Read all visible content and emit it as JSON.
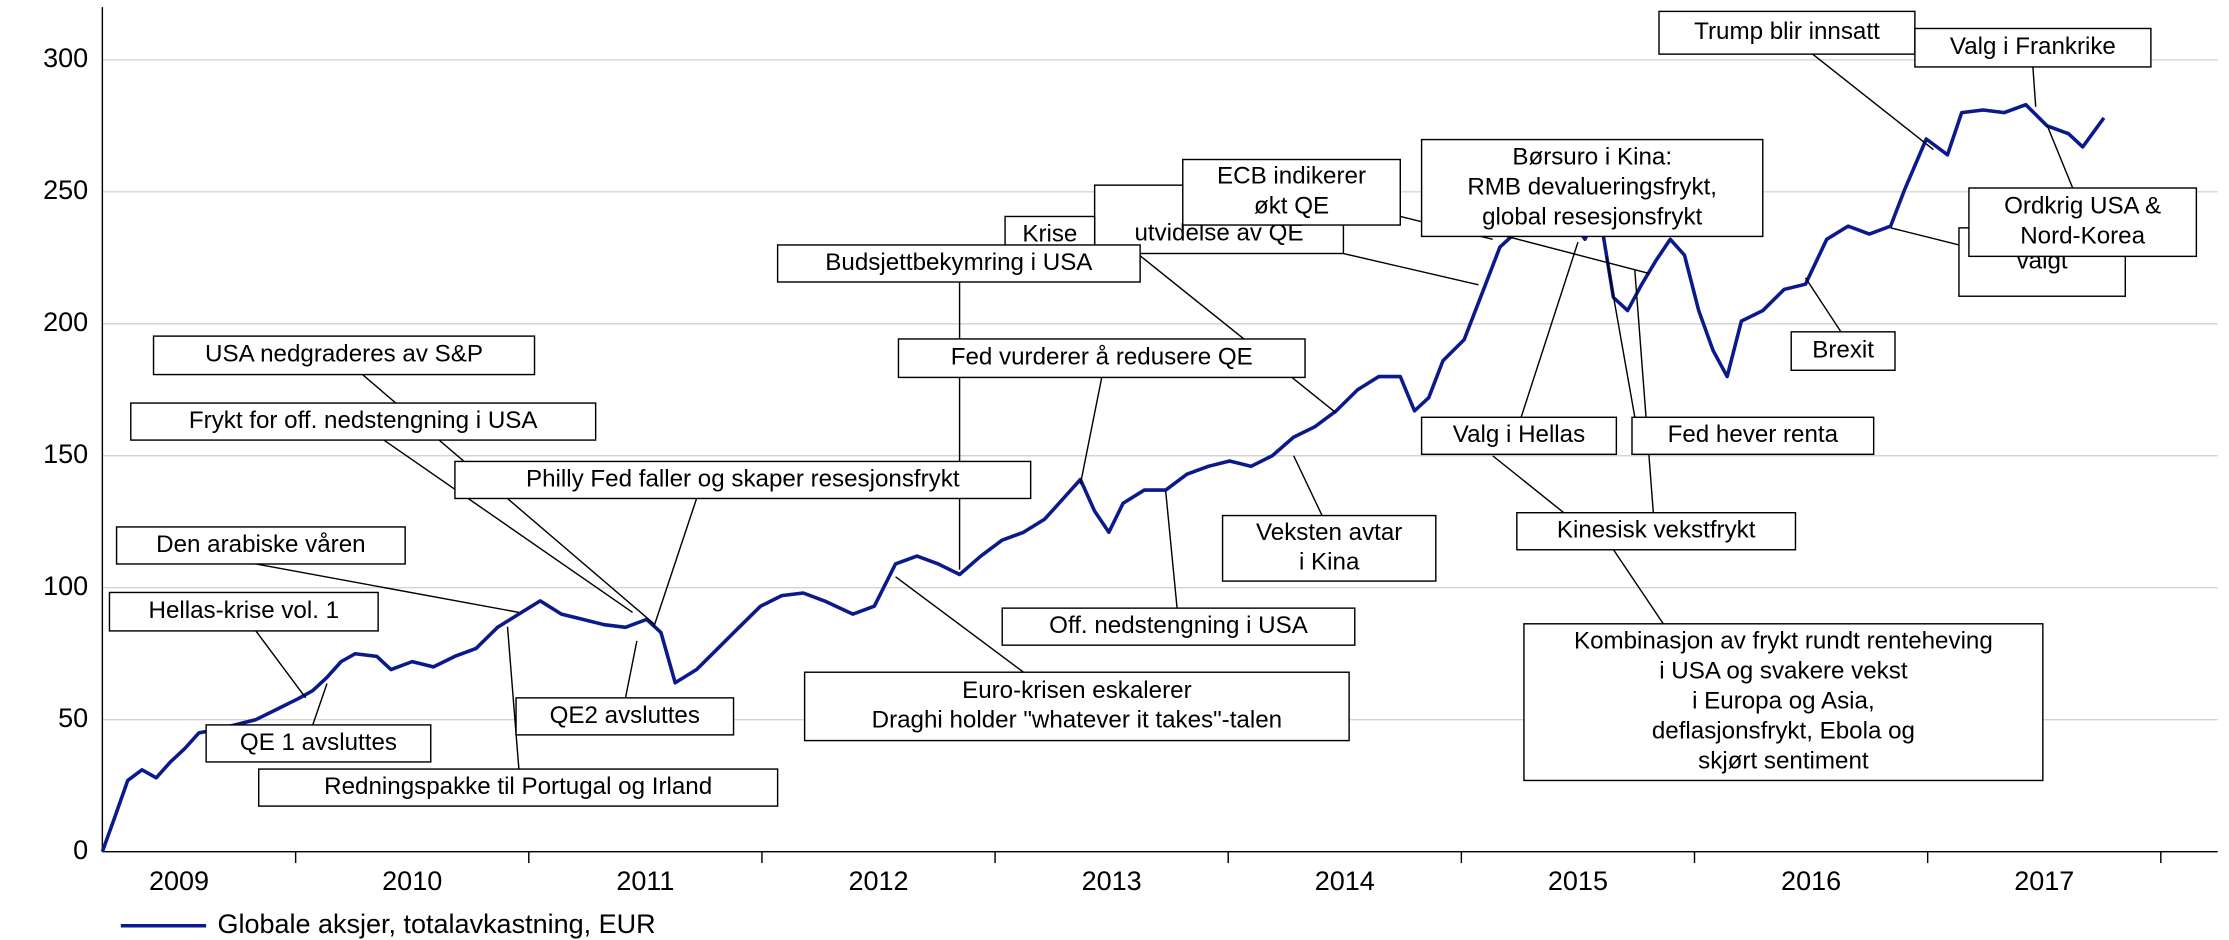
{
  "chart_data": {
    "type": "line",
    "x": [
      2009.171,
      2009.22,
      2009.28,
      2009.341,
      2009.402,
      2009.463,
      2009.524,
      2009.585,
      2009.646,
      2009.738,
      2009.829,
      2009.921,
      2010.012,
      2010.073,
      2010.134,
      2010.195,
      2010.256,
      2010.348,
      2010.409,
      2010.5,
      2010.591,
      2010.683,
      2010.774,
      2010.866,
      2010.957,
      2011.049,
      2011.14,
      2011.232,
      2011.323,
      2011.415,
      2011.506,
      2011.567,
      2011.628,
      2011.72,
      2011.811,
      2011.902,
      2011.994,
      2012.085,
      2012.177,
      2012.268,
      2012.39,
      2012.482,
      2012.573,
      2012.665,
      2012.756,
      2012.848,
      2012.939,
      2013.03,
      2013.122,
      2013.213,
      2013.305,
      2013.366,
      2013.427,
      2013.488,
      2013.549,
      2013.64,
      2013.732,
      2013.823,
      2013.915,
      2014.006,
      2014.098,
      2014.189,
      2014.28,
      2014.372,
      2014.463,
      2014.555,
      2014.646,
      2014.738,
      2014.799,
      2014.86,
      2014.921,
      2015.012,
      2015.104,
      2015.165,
      2015.226,
      2015.317,
      2015.409,
      2015.47,
      2015.53,
      2015.591,
      2015.652,
      2015.713,
      2015.774,
      2015.835,
      2015.896,
      2015.957,
      2016.018,
      2016.079,
      2016.14,
      2016.201,
      2016.293,
      2016.384,
      2016.476,
      2016.567,
      2016.659,
      2016.75,
      2016.841,
      2016.902,
      2016.994,
      2017.085,
      2017.146,
      2017.238,
      2017.329,
      2017.421,
      2017.512,
      2017.604,
      2017.665,
      2017.756
    ],
    "series": [
      {
        "name": "Globale aksjer, totalavkastning, EUR",
        "color": "#0a1a8c",
        "values": [
          0,
          12,
          27,
          31,
          28,
          34,
          39,
          45,
          46,
          48,
          50,
          54,
          58,
          61,
          66,
          72,
          75,
          74,
          69,
          72,
          70,
          74,
          77,
          85,
          90,
          95,
          90,
          88,
          86,
          85,
          88,
          83,
          64,
          69,
          77,
          85,
          93,
          97,
          98,
          95,
          90,
          93,
          109,
          112,
          109,
          105,
          112,
          118,
          121,
          126,
          135,
          141,
          129,
          121,
          132,
          137,
          137,
          143,
          146,
          148,
          146,
          150,
          157,
          161,
          167,
          175,
          180,
          180,
          167,
          172,
          186,
          194,
          215,
          229,
          234,
          240,
          237,
          240,
          232,
          243,
          210,
          205,
          215,
          224,
          232,
          226,
          205,
          190,
          180,
          201,
          205,
          213,
          215,
          232,
          237,
          234,
          237,
          251,
          270,
          264,
          280,
          281,
          280,
          283,
          275,
          272,
          267,
          278
        ]
      }
    ],
    "xlim": [
      2009.171,
      2018.244
    ],
    "xticks": [
      2010,
      2011,
      2012,
      2013,
      2014,
      2015,
      2016,
      2017,
      2018
    ],
    "xtick_labels": [
      {
        "value": 2009.5,
        "label": "2009"
      },
      {
        "value": 2010.5,
        "label": "2010"
      },
      {
        "value": 2011.5,
        "label": "2011"
      },
      {
        "value": 2012.5,
        "label": "2012"
      },
      {
        "value": 2013.5,
        "label": "2013"
      },
      {
        "value": 2014.5,
        "label": "2014"
      },
      {
        "value": 2015.5,
        "label": "2015"
      },
      {
        "value": 2016.5,
        "label": "2016"
      },
      {
        "value": 2017.5,
        "label": "2017"
      }
    ],
    "ylim": [
      0,
      300
    ],
    "yticks": [
      0,
      50,
      100,
      150,
      200,
      250,
      300
    ],
    "grid": true,
    "annotations": [
      [
        "Trump blir innsatt"
      ],
      [
        "Valg i Frankrike"
      ],
      [
        "valgt"
      ],
      [
        "Ordkrig USA &",
        "Nord-Korea"
      ],
      [
        "Børsuro i Kina:",
        "RMB devalueringsfrykt,",
        "global resesjonsfrykt"
      ],
      [
        "ECB",
        "utvidelse av QE"
      ],
      [
        "ECB indikerer",
        "økt QE"
      ],
      [
        "Krise"
      ],
      [
        "Budsjettbekymring i USA"
      ],
      [
        "Fed vurderer å redusere QE"
      ],
      [
        "USA nedgraderes av S&P"
      ],
      [
        "Frykt for off. nedstengning i USA"
      ],
      [
        "Philly Fed faller og skaper resesjonsfrykt"
      ],
      [
        "Den arabiske våren"
      ],
      [
        "Hellas-krise vol. 1"
      ],
      [
        "QE 1 avsluttes"
      ],
      [
        "Redningspakke til Portugal og Irland"
      ],
      [
        "QE2 avsluttes"
      ],
      [
        "Euro-krisen eskalerer",
        "Draghi holder \"whatever it takes\"-talen"
      ],
      [
        "Off. nedstengning i USA"
      ],
      [
        "Veksten avtar",
        "i Kina"
      ],
      [
        "Valg i Hellas"
      ],
      [
        "Fed hever renta"
      ],
      [
        "Kinesisk vekstfrykt"
      ],
      [
        "Kombinasjon av frykt rundt renteheving",
        "i USA og svakere vekst",
        "i Europa og Asia,",
        "deflasjonsfrykt, Ebola og",
        "skjørt sentiment"
      ],
      [
        "Brexit"
      ]
    ]
  }
}
